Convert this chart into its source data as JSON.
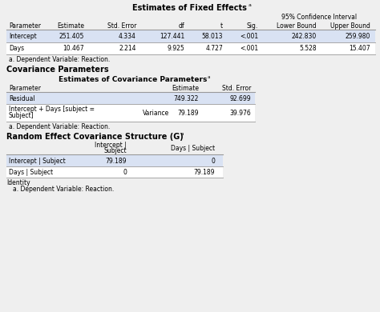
{
  "bg_color": "#efefef",
  "row_bg_odd": "#d9e2f3",
  "row_bg_even": "#ffffff",
  "text_color": "#000000",
  "line_color": "#999999",
  "fixed_effects_title": "Estimates of Fixed Effects",
  "fixed_effects_subheader": "95% Confidence Interval",
  "fixed_effects_headers": [
    "Parameter",
    "Estimate",
    "Std. Error",
    "df",
    "t",
    "Sig.",
    "Lower Bound",
    "Upper Bound"
  ],
  "fixed_effects_rows": [
    [
      "Intercept",
      "251.405",
      "4.334",
      "127.441",
      "58.013",
      "<.001",
      "242.830",
      "259.980"
    ],
    [
      "Days",
      "10.467",
      "2.214",
      "9.925",
      "4.727",
      "<.001",
      "5.528",
      "15.407"
    ]
  ],
  "fixed_effects_footnote": "a. Dependent Variable: Reaction.",
  "cov_section_title": "Covariance Parameters",
  "cov_params_title": "Estimates of Covariance Parameters",
  "cov_params_headers": [
    "Parameter",
    "",
    "Estimate",
    "Std. Error"
  ],
  "cov_params_rows": [
    [
      "Residual",
      "",
      "749.322",
      "92.699"
    ],
    [
      "Intercept + Days [subject =\nSubject]",
      "Variance",
      "79.189",
      "39.976"
    ]
  ],
  "cov_params_footnote": "a. Dependent Variable: Reaction.",
  "random_title": "Random Effect Covariance Structure (G)",
  "random_col_headers": [
    "",
    "Intercept |\nSubject",
    "Days | Subject"
  ],
  "random_rows": [
    [
      "Intercept | Subject",
      "79.189",
      "0"
    ],
    [
      "Days | Subject",
      "0",
      "79.189"
    ]
  ],
  "random_footnote1": "Identity",
  "random_footnote2": "a. Dependent Variable: Reaction."
}
